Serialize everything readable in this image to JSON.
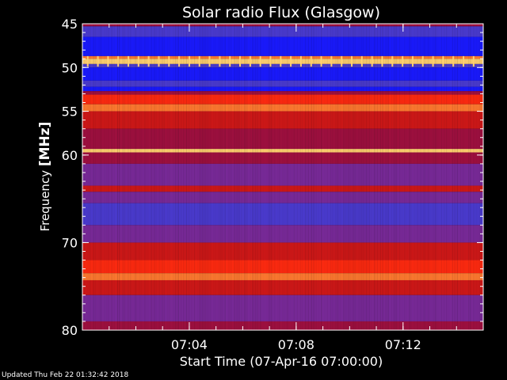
{
  "chart_data": {
    "type": "heatmap",
    "title": "Solar radio Flux (Glasgow)",
    "xlabel": "Start Time (07-Apr-16 07:00:00)",
    "ylabel_text": "Frequency ",
    "ylabel_unit": "[MHz]",
    "x_range_minutes": [
      0,
      15
    ],
    "x_ticks": [
      {
        "minute": 4,
        "label": "07:04"
      },
      {
        "minute": 8,
        "label": "07:08"
      },
      {
        "minute": 12,
        "label": "07:12"
      }
    ],
    "y_range_mhz": [
      45,
      80
    ],
    "y_ticks": [
      {
        "mhz": 45,
        "label": "45"
      },
      {
        "mhz": 50,
        "label": "50"
      },
      {
        "mhz": 55,
        "label": "55"
      },
      {
        "mhz": 60,
        "label": "60"
      },
      {
        "mhz": 70,
        "label": "70"
      },
      {
        "mhz": 80,
        "label": "80"
      }
    ],
    "colormap": [
      "#000033",
      "#1a1aff",
      "#4b3bd0",
      "#7a2a9a",
      "#a01040",
      "#d01818",
      "#ff2a10",
      "#ff7a30",
      "#ffd070"
    ],
    "bands_mhz": [
      {
        "from": 45.0,
        "to": 45.3,
        "level": 4
      },
      {
        "from": 45.3,
        "to": 46.5,
        "level": 2
      },
      {
        "from": 46.5,
        "to": 48.7,
        "level": 1
      },
      {
        "from": 48.7,
        "to": 49.0,
        "level": 7
      },
      {
        "from": 49.0,
        "to": 49.6,
        "level": 8
      },
      {
        "from": 49.6,
        "to": 50.0,
        "level": 2
      },
      {
        "from": 50.0,
        "to": 51.5,
        "level": 1
      },
      {
        "from": 51.5,
        "to": 52.2,
        "level": 2
      },
      {
        "from": 52.2,
        "to": 52.7,
        "level": 1
      },
      {
        "from": 52.7,
        "to": 53.1,
        "level": 4
      },
      {
        "from": 53.1,
        "to": 54.2,
        "level": 6
      },
      {
        "from": 54.2,
        "to": 55.0,
        "level": 7
      },
      {
        "from": 55.0,
        "to": 57.0,
        "level": 5
      },
      {
        "from": 57.0,
        "to": 59.3,
        "level": 4
      },
      {
        "from": 59.3,
        "to": 59.7,
        "level": 8
      },
      {
        "from": 59.7,
        "to": 61.0,
        "level": 4
      },
      {
        "from": 61.0,
        "to": 63.5,
        "level": 3
      },
      {
        "from": 63.5,
        "to": 64.2,
        "level": 5
      },
      {
        "from": 64.2,
        "to": 65.5,
        "level": 3
      },
      {
        "from": 65.5,
        "to": 68.0,
        "level": 2
      },
      {
        "from": 68.0,
        "to": 70.0,
        "level": 3
      },
      {
        "from": 70.0,
        "to": 72.0,
        "level": 5
      },
      {
        "from": 72.0,
        "to": 73.5,
        "level": 6
      },
      {
        "from": 73.5,
        "to": 74.3,
        "level": 7
      },
      {
        "from": 74.3,
        "to": 76.0,
        "level": 5
      },
      {
        "from": 76.0,
        "to": 79.0,
        "level": 3
      },
      {
        "from": 79.0,
        "to": 80.0,
        "level": 4
      }
    ]
  },
  "footer": "Updated Thu Feb 22 01:32:42 2018"
}
